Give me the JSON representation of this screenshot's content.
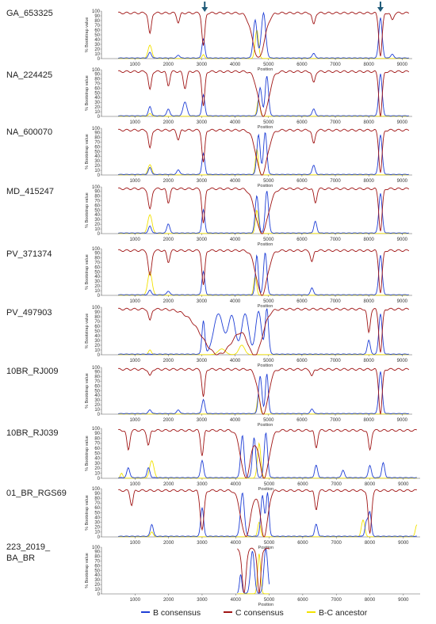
{
  "chart_data": {
    "type": "line",
    "xlabel": "Position",
    "ylabel": "% Bootstrap value",
    "colors": {
      "b": "#1f3fd6",
      "c": "#a01414",
      "bc": "#f2e200"
    },
    "legend": {
      "position": "bottom",
      "items": [
        "B consensus",
        "C consensus",
        "B-C ancestor"
      ]
    },
    "arrow_positions": [
      3090,
      8350
    ],
    "panels": [
      {
        "label": "GA_653325",
        "xlim": [
          0,
          9300
        ],
        "yticks": [
          0,
          10,
          20,
          30,
          40,
          50,
          60,
          70,
          80,
          90,
          100
        ],
        "xticks": [
          1000,
          2000,
          3000,
          4000,
          5000,
          6000,
          7000,
          8000,
          9000
        ],
        "b_peaks": [
          [
            1450,
            12,
            60
          ],
          [
            2300,
            6,
            60
          ],
          [
            3050,
            40,
            60
          ],
          [
            4600,
            80,
            80
          ],
          [
            4850,
            95,
            90
          ],
          [
            6350,
            10,
            60
          ],
          [
            8350,
            85,
            70
          ],
          [
            8700,
            8,
            60
          ]
        ],
        "c_dips": [
          [
            1450,
            45,
            60
          ],
          [
            2300,
            20,
            60
          ],
          [
            3050,
            70,
            60
          ],
          [
            4700,
            95,
            250
          ],
          [
            6350,
            25,
            60
          ],
          [
            8350,
            90,
            70
          ],
          [
            8700,
            15,
            60
          ]
        ],
        "bc_peaks": [
          [
            1450,
            28,
            80
          ],
          [
            4650,
            60,
            70
          ],
          [
            3050,
            8,
            50
          ]
        ]
      },
      {
        "label": "NA_224425",
        "xlim": [
          0,
          9300
        ],
        "yticks": [
          0,
          10,
          20,
          30,
          40,
          50,
          60,
          70,
          80,
          90,
          100
        ],
        "xticks": [
          1000,
          2000,
          3000,
          4000,
          5000,
          6000,
          7000,
          8000,
          9000
        ],
        "b_peaks": [
          [
            1450,
            20,
            60
          ],
          [
            2000,
            15,
            60
          ],
          [
            2500,
            30,
            80
          ],
          [
            3050,
            45,
            60
          ],
          [
            4750,
            60,
            70
          ],
          [
            4950,
            85,
            70
          ],
          [
            6350,
            15,
            60
          ],
          [
            8350,
            90,
            70
          ]
        ],
        "c_dips": [
          [
            1450,
            40,
            60
          ],
          [
            2000,
            30,
            60
          ],
          [
            2500,
            35,
            70
          ],
          [
            3050,
            75,
            60
          ],
          [
            4850,
            95,
            220
          ],
          [
            6350,
            25,
            60
          ],
          [
            8350,
            95,
            70
          ]
        ],
        "bc_peaks": [
          [
            4700,
            35,
            60
          ],
          [
            1450,
            6,
            60
          ]
        ]
      },
      {
        "label": "NA_600070",
        "xlim": [
          0,
          9300
        ],
        "yticks": [
          0,
          10,
          20,
          30,
          40,
          50,
          60,
          70,
          80,
          90,
          100
        ],
        "xticks": [
          1000,
          2000,
          3000,
          4000,
          5000,
          6000,
          7000,
          8000,
          9000
        ],
        "b_peaks": [
          [
            1450,
            15,
            60
          ],
          [
            2300,
            10,
            60
          ],
          [
            3050,
            45,
            60
          ],
          [
            4700,
            85,
            70
          ],
          [
            4900,
            90,
            70
          ],
          [
            6350,
            20,
            60
          ],
          [
            8350,
            85,
            70
          ]
        ],
        "c_dips": [
          [
            1450,
            40,
            60
          ],
          [
            2300,
            20,
            60
          ],
          [
            3050,
            70,
            60
          ],
          [
            4800,
            95,
            230
          ],
          [
            6350,
            30,
            60
          ],
          [
            8350,
            90,
            70
          ]
        ],
        "bc_peaks": [
          [
            1450,
            22,
            80
          ],
          [
            4650,
            55,
            60
          ]
        ]
      },
      {
        "label": "MD_415247",
        "xlim": [
          0,
          9300
        ],
        "yticks": [
          0,
          10,
          20,
          30,
          40,
          50,
          60,
          70,
          80,
          90,
          100
        ],
        "xticks": [
          1000,
          2000,
          3000,
          4000,
          5000,
          6000,
          7000,
          8000,
          9000
        ],
        "b_peaks": [
          [
            1450,
            15,
            60
          ],
          [
            2000,
            20,
            60
          ],
          [
            3050,
            50,
            60
          ],
          [
            4650,
            80,
            70
          ],
          [
            4950,
            90,
            70
          ],
          [
            6400,
            25,
            60
          ],
          [
            8350,
            85,
            70
          ]
        ],
        "c_dips": [
          [
            1450,
            45,
            70
          ],
          [
            2000,
            30,
            60
          ],
          [
            3050,
            75,
            60
          ],
          [
            4800,
            95,
            260
          ],
          [
            6400,
            30,
            60
          ],
          [
            8350,
            90,
            70
          ]
        ],
        "bc_peaks": [
          [
            1450,
            40,
            90
          ],
          [
            4650,
            50,
            60
          ]
        ]
      },
      {
        "label": "PV_371374",
        "xlim": [
          0,
          9300
        ],
        "yticks": [
          0,
          10,
          20,
          30,
          40,
          50,
          60,
          70,
          80,
          90,
          100
        ],
        "xticks": [
          1000,
          2000,
          3000,
          4000,
          5000,
          6000,
          7000,
          8000,
          9000
        ],
        "b_peaks": [
          [
            1450,
            10,
            60
          ],
          [
            2000,
            8,
            60
          ],
          [
            3050,
            50,
            60
          ],
          [
            4650,
            85,
            60
          ],
          [
            4900,
            90,
            70
          ],
          [
            6300,
            15,
            60
          ],
          [
            8350,
            85,
            70
          ]
        ],
        "c_dips": [
          [
            1450,
            55,
            70
          ],
          [
            2000,
            25,
            60
          ],
          [
            3050,
            75,
            60
          ],
          [
            4800,
            95,
            230
          ],
          [
            6300,
            25,
            60
          ],
          [
            8350,
            90,
            70
          ]
        ],
        "bc_peaks": [
          [
            1450,
            50,
            90
          ],
          [
            4600,
            40,
            60
          ]
        ]
      },
      {
        "label": "PV_497903",
        "xlim": [
          0,
          9300
        ],
        "yticks": [
          0,
          10,
          20,
          30,
          40,
          50,
          60,
          70,
          80,
          90,
          100
        ],
        "xticks": [
          1000,
          2000,
          3000,
          4000,
          5000,
          6000,
          7000,
          8000,
          9000
        ],
        "b_peaks": [
          [
            3050,
            70,
            60
          ],
          [
            3500,
            85,
            200
          ],
          [
            3900,
            80,
            150
          ],
          [
            4300,
            85,
            150
          ],
          [
            4700,
            90,
            120
          ],
          [
            4950,
            95,
            70
          ],
          [
            8000,
            30,
            60
          ],
          [
            8350,
            85,
            70
          ]
        ],
        "c_dips": [
          [
            1450,
            25,
            60
          ],
          [
            3500,
            95,
            700
          ],
          [
            4600,
            90,
            300
          ],
          [
            8000,
            50,
            60
          ],
          [
            8350,
            90,
            70
          ]
        ],
        "bc_peaks": [
          [
            1450,
            10,
            60
          ],
          [
            3600,
            12,
            150
          ],
          [
            4200,
            20,
            120
          ]
        ]
      },
      {
        "label": "10BR_RJ009",
        "xlim": [
          0,
          9300
        ],
        "yticks": [
          0,
          10,
          20,
          30,
          40,
          50,
          60,
          70,
          80,
          90,
          100
        ],
        "xticks": [
          1000,
          2000,
          3000,
          4000,
          5000,
          6000,
          7000,
          8000,
          9000
        ],
        "b_peaks": [
          [
            1450,
            8,
            60
          ],
          [
            2300,
            8,
            60
          ],
          [
            3050,
            30,
            60
          ],
          [
            4750,
            80,
            70
          ],
          [
            4950,
            85,
            60
          ],
          [
            6300,
            10,
            60
          ],
          [
            8350,
            90,
            70
          ]
        ],
        "c_dips": [
          [
            1450,
            15,
            60
          ],
          [
            3050,
            60,
            60
          ],
          [
            4850,
            95,
            200
          ],
          [
            6300,
            15,
            60
          ],
          [
            8350,
            95,
            70
          ]
        ],
        "bc_peaks": [
          [
            4700,
            40,
            60
          ]
        ]
      },
      {
        "label": "10BR_RJ039",
        "xlim": [
          0,
          9500
        ],
        "yticks": [
          0,
          10,
          20,
          30,
          40,
          50,
          60,
          70,
          80,
          90,
          100
        ],
        "xticks": [
          1000,
          2000,
          3000,
          4000,
          5000,
          6000,
          7000,
          8000,
          9000
        ],
        "b_peaks": [
          [
            800,
            20,
            60
          ],
          [
            1400,
            20,
            60
          ],
          [
            3000,
            35,
            60
          ],
          [
            4200,
            85,
            70
          ],
          [
            4550,
            80,
            70
          ],
          [
            4900,
            90,
            70
          ],
          [
            6400,
            25,
            60
          ],
          [
            7200,
            15,
            60
          ],
          [
            8000,
            25,
            60
          ],
          [
            8400,
            30,
            60
          ]
        ],
        "c_dips": [
          [
            800,
            40,
            60
          ],
          [
            1400,
            30,
            60
          ],
          [
            3000,
            50,
            60
          ],
          [
            4300,
            95,
            200
          ],
          [
            4850,
            95,
            200
          ],
          [
            6400,
            35,
            60
          ],
          [
            8000,
            40,
            60
          ]
        ],
        "bc_peaks": [
          [
            1500,
            35,
            90
          ],
          [
            4700,
            70,
            70
          ],
          [
            600,
            10,
            50
          ]
        ]
      },
      {
        "label": "01_BR_RGS69",
        "xlim": [
          0,
          9500
        ],
        "yticks": [
          0,
          10,
          20,
          30,
          40,
          50,
          60,
          70,
          80,
          90,
          100
        ],
        "xticks": [
          1000,
          2000,
          3000,
          4000,
          5000,
          6000,
          7000,
          8000,
          9000
        ],
        "b_peaks": [
          [
            1500,
            25,
            60
          ],
          [
            3000,
            60,
            60
          ],
          [
            4200,
            90,
            80
          ],
          [
            4800,
            85,
            70
          ],
          [
            4950,
            90,
            60
          ],
          [
            6400,
            25,
            60
          ],
          [
            7900,
            30,
            60
          ],
          [
            8000,
            50,
            60
          ]
        ],
        "c_dips": [
          [
            900,
            30,
            60
          ],
          [
            3000,
            80,
            80
          ],
          [
            4300,
            95,
            200
          ],
          [
            4850,
            95,
            150
          ],
          [
            6400,
            40,
            60
          ],
          [
            8000,
            90,
            70
          ]
        ],
        "bc_peaks": [
          [
            1500,
            10,
            60
          ],
          [
            4700,
            30,
            60
          ],
          [
            7800,
            35,
            70
          ],
          [
            9400,
            25,
            60
          ]
        ]
      },
      {
        "label": "223_2019_ BA_BR",
        "xlim": [
          0,
          9500
        ],
        "yticks": [
          0,
          10,
          20,
          30,
          40,
          50,
          60,
          70,
          80,
          90,
          100
        ],
        "xticks": [
          1000,
          2000,
          3000,
          4000,
          5000,
          6000,
          7000,
          8000,
          9000
        ],
        "seg_range": [
          4050,
          5000
        ],
        "b_peaks": [
          [
            4150,
            40,
            50
          ],
          [
            4500,
            90,
            80
          ],
          [
            4900,
            95,
            80
          ]
        ],
        "c_dips": [
          [
            4250,
            95,
            80
          ],
          [
            4700,
            95,
            70
          ]
        ],
        "bc_peaks": [
          [
            4700,
            85,
            60
          ]
        ]
      }
    ]
  }
}
